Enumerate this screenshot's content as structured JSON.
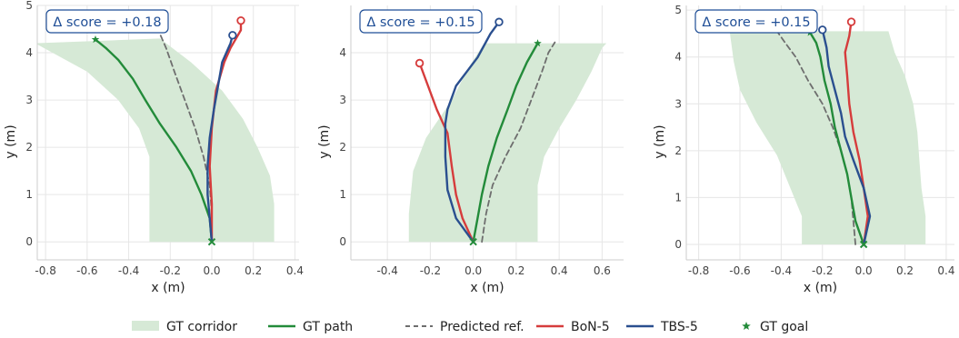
{
  "colors": {
    "corridor": "#d6e9d6",
    "gt_path": "#238b3a",
    "predicted": "#6e6e6e",
    "bon": "#d63c3c",
    "tbs": "#2a4f8f",
    "goal": "#238b3a",
    "grid": "#e6e6e6",
    "annotation": "#1f4e96"
  },
  "legend": {
    "items": [
      {
        "key": "corridor",
        "label": "GT corridor",
        "icon": "filled-rect"
      },
      {
        "key": "gt_path",
        "label": "GT path",
        "icon": "solid-line"
      },
      {
        "key": "predicted",
        "label": "Predicted ref.",
        "icon": "dashed-line"
      },
      {
        "key": "bon",
        "label": "BoN-5",
        "icon": "solid-line"
      },
      {
        "key": "tbs",
        "label": "TBS-5",
        "icon": "solid-line"
      },
      {
        "key": "goal",
        "label": "GT goal",
        "icon": "star-icon"
      }
    ]
  },
  "chart_data": [
    {
      "type": "line",
      "annotation": "Δ score = +0.18",
      "xlabel": "x (m)",
      "ylabel": "y (m)",
      "xlim": [
        -0.84,
        0.42
      ],
      "ylim": [
        -0.38,
        5.0
      ],
      "xticks": [
        "-0.8",
        "-0.6",
        "-0.4",
        "-0.2",
        "0.0",
        "0.2",
        "0.4"
      ],
      "xtick_values": [
        -0.8,
        -0.6,
        -0.4,
        -0.2,
        0.0,
        0.2,
        0.4
      ],
      "yticks": [
        "0",
        "1",
        "2",
        "3",
        "4",
        "5"
      ],
      "ytick_values": [
        0,
        1,
        2,
        3,
        4,
        5
      ],
      "grid": true,
      "corridor": [
        [
          -0.3,
          0
        ],
        [
          0.3,
          0
        ],
        [
          0.3,
          0.8
        ],
        [
          0.28,
          1.4
        ],
        [
          0.22,
          2.0
        ],
        [
          0.15,
          2.6
        ],
        [
          0.05,
          3.2
        ],
        [
          -0.1,
          3.8
        ],
        [
          -0.25,
          4.3
        ],
        [
          -0.85,
          4.2
        ],
        [
          -0.6,
          3.6
        ],
        [
          -0.45,
          3.0
        ],
        [
          -0.35,
          2.4
        ],
        [
          -0.3,
          1.8
        ],
        [
          -0.3,
          0.6
        ]
      ],
      "series": [
        {
          "key": "predicted",
          "name": "Predicted ref.",
          "points": [
            [
              0.0,
              0
            ],
            [
              0.0,
              0.6
            ],
            [
              -0.01,
              1.2
            ],
            [
              -0.04,
              1.8
            ],
            [
              -0.08,
              2.4
            ],
            [
              -0.13,
              3.0
            ],
            [
              -0.18,
              3.6
            ],
            [
              -0.22,
              4.1
            ],
            [
              -0.25,
              4.4
            ],
            [
              -0.28,
              4.8
            ]
          ]
        },
        {
          "key": "gt_path",
          "name": "GT path",
          "points": [
            [
              0.0,
              0
            ],
            [
              -0.01,
              0.5
            ],
            [
              -0.05,
              1.0
            ],
            [
              -0.1,
              1.5
            ],
            [
              -0.17,
              2.0
            ],
            [
              -0.25,
              2.5
            ],
            [
              -0.32,
              3.0
            ],
            [
              -0.38,
              3.45
            ],
            [
              -0.45,
              3.85
            ],
            [
              -0.51,
              4.1
            ],
            [
              -0.56,
              4.28
            ]
          ]
        },
        {
          "key": "bon",
          "name": "BoN-5",
          "points": [
            [
              0.0,
              0
            ],
            [
              0.0,
              0.8
            ],
            [
              -0.01,
              1.6
            ],
            [
              0.0,
              2.4
            ],
            [
              0.02,
              3.2
            ],
            [
              0.06,
              3.8
            ],
            [
              0.09,
              4.1
            ],
            [
              0.14,
              4.48
            ],
            [
              0.14,
              4.68
            ]
          ]
        },
        {
          "key": "tbs",
          "name": "TBS-5",
          "points": [
            [
              0.0,
              0
            ],
            [
              -0.01,
              0.5
            ],
            [
              -0.02,
              1.0
            ],
            [
              -0.02,
              1.6
            ],
            [
              -0.01,
              2.2
            ],
            [
              0.01,
              2.8
            ],
            [
              0.03,
              3.3
            ],
            [
              0.05,
              3.8
            ],
            [
              0.09,
              4.2
            ],
            [
              0.1,
              4.37
            ]
          ]
        }
      ],
      "goal": [
        -0.56,
        4.28
      ],
      "start": [
        0.0,
        0.0
      ],
      "endpoints": [
        {
          "key": "bon",
          "at": [
            0.14,
            4.68
          ]
        },
        {
          "key": "tbs",
          "at": [
            0.1,
            4.37
          ]
        }
      ]
    },
    {
      "type": "line",
      "annotation": "Δ score = +0.15",
      "xlabel": "x (m)",
      "ylabel": "y (m)",
      "xlim": [
        -0.57,
        0.7
      ],
      "ylim": [
        -0.38,
        5.0
      ],
      "xticks": [
        "-0.4",
        "-0.2",
        "0.0",
        "0.2",
        "0.4",
        "0.6"
      ],
      "xtick_values": [
        -0.4,
        -0.2,
        0.0,
        0.2,
        0.4,
        0.6
      ],
      "yticks": [
        "0",
        "1",
        "2",
        "3",
        "4"
      ],
      "ytick_values": [
        0,
        1,
        2,
        3,
        4
      ],
      "grid": true,
      "corridor": [
        [
          -0.3,
          0
        ],
        [
          0.3,
          0
        ],
        [
          0.3,
          1.2
        ],
        [
          0.33,
          1.8
        ],
        [
          0.4,
          2.4
        ],
        [
          0.48,
          3.0
        ],
        [
          0.55,
          3.6
        ],
        [
          0.6,
          4.1
        ],
        [
          0.62,
          4.2
        ],
        [
          0.05,
          4.2
        ],
        [
          -0.02,
          3.7
        ],
        [
          -0.1,
          3.0
        ],
        [
          -0.22,
          2.2
        ],
        [
          -0.28,
          1.5
        ],
        [
          -0.3,
          0.6
        ]
      ],
      "series": [
        {
          "key": "predicted",
          "name": "Predicted ref.",
          "points": [
            [
              0.04,
              0
            ],
            [
              0.06,
              0.6
            ],
            [
              0.09,
              1.2
            ],
            [
              0.15,
              1.8
            ],
            [
              0.22,
              2.4
            ],
            [
              0.27,
              3.0
            ],
            [
              0.32,
              3.6
            ],
            [
              0.35,
              4.0
            ],
            [
              0.38,
              4.22
            ]
          ]
        },
        {
          "key": "gt_path",
          "name": "GT path",
          "points": [
            [
              0.0,
              0
            ],
            [
              0.02,
              0.5
            ],
            [
              0.04,
              1.0
            ],
            [
              0.07,
              1.6
            ],
            [
              0.11,
              2.2
            ],
            [
              0.16,
              2.8
            ],
            [
              0.2,
              3.3
            ],
            [
              0.25,
              3.8
            ],
            [
              0.3,
              4.2
            ]
          ]
        },
        {
          "key": "bon",
          "name": "BoN-5",
          "points": [
            [
              0.0,
              0
            ],
            [
              -0.05,
              0.5
            ],
            [
              -0.08,
              1.0
            ],
            [
              -0.1,
              1.6
            ],
            [
              -0.12,
              2.3
            ],
            [
              -0.17,
              2.8
            ],
            [
              -0.25,
              3.78
            ]
          ]
        },
        {
          "key": "tbs",
          "name": "TBS-5",
          "points": [
            [
              0.0,
              0
            ],
            [
              -0.08,
              0.5
            ],
            [
              -0.12,
              1.1
            ],
            [
              -0.13,
              1.8
            ],
            [
              -0.13,
              2.5
            ],
            [
              -0.12,
              2.8
            ],
            [
              -0.08,
              3.3
            ],
            [
              0.02,
              3.9
            ],
            [
              0.08,
              4.4
            ],
            [
              0.12,
              4.65
            ]
          ]
        }
      ],
      "goal": [
        0.3,
        4.2
      ],
      "start": [
        0.0,
        0.0
      ],
      "endpoints": [
        {
          "key": "bon",
          "at": [
            -0.25,
            3.78
          ]
        },
        {
          "key": "tbs",
          "at": [
            0.12,
            4.65
          ]
        }
      ]
    },
    {
      "type": "line",
      "annotation": "Δ score = +0.15",
      "xlabel": "x (m)",
      "ylabel": "y (m)",
      "xlim": [
        -0.86,
        0.44
      ],
      "ylim": [
        -0.33,
        5.1
      ],
      "xticks": [
        "-0.8",
        "-0.6",
        "-0.4",
        "-0.2",
        "0.0",
        "0.2",
        "0.4"
      ],
      "xtick_values": [
        -0.8,
        -0.6,
        -0.4,
        -0.2,
        0.0,
        0.2,
        0.4
      ],
      "yticks": [
        "0",
        "1",
        "2",
        "3",
        "4",
        "5"
      ],
      "ytick_values": [
        0,
        1,
        2,
        3,
        4,
        5
      ],
      "grid": true,
      "corridor": [
        [
          -0.3,
          0
        ],
        [
          0.3,
          0
        ],
        [
          0.3,
          0.6
        ],
        [
          0.28,
          1.2
        ],
        [
          0.27,
          1.8
        ],
        [
          0.26,
          2.4
        ],
        [
          0.24,
          3.0
        ],
        [
          0.2,
          3.6
        ],
        [
          0.15,
          4.1
        ],
        [
          0.12,
          4.55
        ],
        [
          -0.65,
          4.55
        ],
        [
          -0.63,
          3.9
        ],
        [
          -0.6,
          3.3
        ],
        [
          -0.52,
          2.6
        ],
        [
          -0.42,
          1.9
        ],
        [
          -0.3,
          0.6
        ]
      ],
      "series": [
        {
          "key": "predicted",
          "name": "Predicted ref.",
          "points": [
            [
              -0.04,
              0
            ],
            [
              -0.05,
              0.5
            ],
            [
              -0.06,
              1.0
            ],
            [
              -0.08,
              1.5
            ],
            [
              -0.11,
              2.0
            ],
            [
              -0.15,
              2.5
            ],
            [
              -0.2,
              3.0
            ],
            [
              -0.27,
              3.5
            ],
            [
              -0.33,
              4.0
            ],
            [
              -0.38,
              4.3
            ],
            [
              -0.42,
              4.55
            ]
          ]
        },
        {
          "key": "gt_path",
          "name": "GT path",
          "points": [
            [
              0.0,
              0
            ],
            [
              -0.04,
              0.5
            ],
            [
              -0.06,
              1.0
            ],
            [
              -0.08,
              1.5
            ],
            [
              -0.11,
              2.0
            ],
            [
              -0.14,
              2.5
            ],
            [
              -0.16,
              3.0
            ],
            [
              -0.19,
              3.5
            ],
            [
              -0.21,
              4.0
            ],
            [
              -0.23,
              4.3
            ],
            [
              -0.26,
              4.52
            ]
          ]
        },
        {
          "key": "bon",
          "name": "BoN-5",
          "points": [
            [
              0.0,
              0
            ],
            [
              0.02,
              0.6
            ],
            [
              0.0,
              1.2
            ],
            [
              -0.02,
              1.8
            ],
            [
              -0.05,
              2.4
            ],
            [
              -0.07,
              3.0
            ],
            [
              -0.08,
              3.6
            ],
            [
              -0.09,
              4.1
            ],
            [
              -0.07,
              4.45
            ],
            [
              -0.06,
              4.75
            ]
          ]
        },
        {
          "key": "tbs",
          "name": "TBS-5",
          "points": [
            [
              0.0,
              0
            ],
            [
              0.03,
              0.6
            ],
            [
              0.0,
              1.2
            ],
            [
              -0.05,
              1.8
            ],
            [
              -0.09,
              2.3
            ],
            [
              -0.11,
              2.8
            ],
            [
              -0.14,
              3.3
            ],
            [
              -0.17,
              3.8
            ],
            [
              -0.18,
              4.2
            ],
            [
              -0.2,
              4.58
            ]
          ]
        }
      ],
      "goal": [
        -0.26,
        4.52
      ],
      "start": [
        0.0,
        0.0
      ],
      "endpoints": [
        {
          "key": "bon",
          "at": [
            -0.06,
            4.75
          ]
        },
        {
          "key": "tbs",
          "at": [
            -0.2,
            4.58
          ]
        }
      ]
    }
  ]
}
